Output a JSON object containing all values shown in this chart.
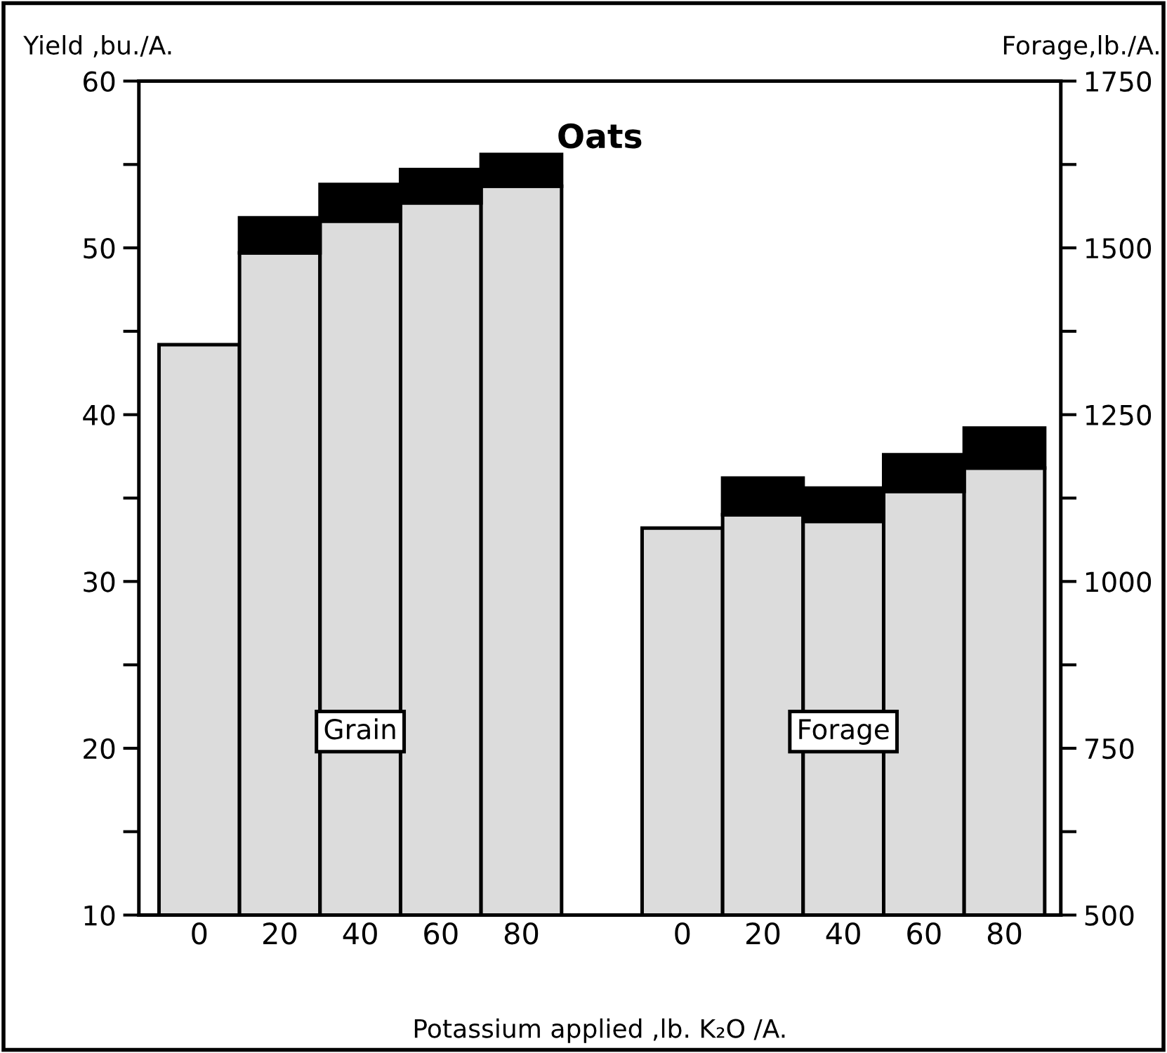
{
  "chart_data": {
    "type": "bar",
    "title": "Oats",
    "xlabel": "Potassium applied ,lb. K₂O /A.",
    "ylabel": "Yield ,bu./A.",
    "y2label": "Forage,lb./A.",
    "categories": [
      "0",
      "20",
      "40",
      "60",
      "80",
      null,
      "0",
      "20",
      "40",
      "60",
      "80"
    ],
    "stacked": true,
    "series": [
      {
        "color": "#dcdcdc",
        "axis": "y",
        "values": [
          44.2,
          49.7,
          51.6,
          52.7,
          53.7,
          null,
          null,
          null,
          null,
          null,
          null
        ]
      },
      {
        "color": "#000000",
        "axis": "y",
        "base": [
          null,
          49.7,
          51.6,
          52.7,
          53.7,
          null,
          null,
          null,
          null,
          null,
          null
        ],
        "values": [
          null,
          2.1,
          2.2,
          2.0,
          1.9,
          null,
          null,
          null,
          null,
          null,
          null
        ]
      },
      {
        "color": "#dcdcdc",
        "axis": "y2",
        "values": [
          null,
          null,
          null,
          null,
          null,
          null,
          1080,
          1100,
          1090,
          1135,
          1170
        ]
      },
      {
        "color": "#000000",
        "axis": "y2",
        "base": [
          null,
          null,
          null,
          null,
          null,
          null,
          null,
          1100,
          1090,
          1135,
          1170
        ],
        "values": [
          null,
          null,
          null,
          null,
          null,
          null,
          null,
          55,
          50,
          55,
          60
        ]
      }
    ],
    "annotations": [
      "Grain",
      "Forage"
    ],
    "ylim": [
      10,
      60
    ],
    "yticks": [
      10,
      {
        "value": 15,
        "label": null
      },
      20,
      {
        "value": 25,
        "label": null
      },
      30,
      {
        "value": 35,
        "label": null
      },
      40,
      {
        "value": 45,
        "label": null
      },
      50,
      {
        "value": 55,
        "label": null
      },
      60
    ],
    "y2lim": [
      500,
      1750
    ],
    "y2ticks": [
      500,
      {
        "value": 625,
        "label": null
      },
      750,
      {
        "value": 875,
        "label": null
      },
      1000,
      {
        "value": 1125,
        "label": null
      },
      1250,
      {
        "value": 1375,
        "label": null
      },
      1500,
      {
        "value": 1625,
        "label": null
      },
      1750
    ],
    "grid": false,
    "legend": false
  }
}
